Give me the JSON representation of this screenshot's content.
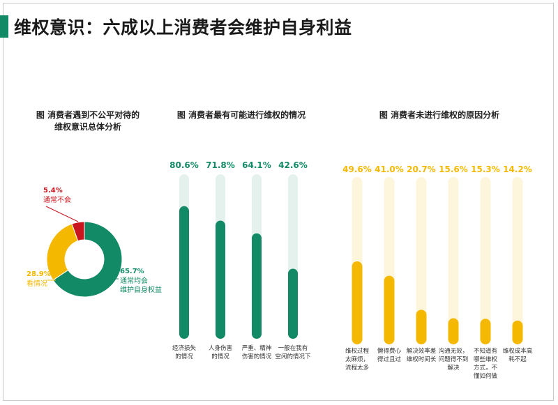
{
  "page": {
    "title": "维权意识：六成以上消费者会维护自身利益"
  },
  "colors": {
    "green": "#138a66",
    "green_track": "#e4f1ec",
    "yellow": "#f5b800",
    "yellow_track": "#fdf5dc",
    "red": "#c9151e"
  },
  "charts": {
    "donut_title_lines": [
      "图 消费者遇到不公平对待的",
      "维权意识总体分析"
    ],
    "bar1_title": "图 消费者最有可能进行维权的情况",
    "bar2_title": "图 消费者未进行维权的原因分析"
  },
  "chart_data": [
    {
      "type": "pie",
      "variant": "donut",
      "slices": [
        {
          "label": "通常均会维护自身权益",
          "label_lines": [
            "通常均会",
            "维护自身权益"
          ],
          "value": 65.7,
          "value_text": "65.7%",
          "color": "#138a66"
        },
        {
          "label": "看情况",
          "label_lines": [
            "看情况"
          ],
          "value": 28.9,
          "value_text": "28.9%",
          "color": "#f5b800"
        },
        {
          "label": "通常不会",
          "label_lines": [
            "通常不会"
          ],
          "value": 5.4,
          "value_text": "5.4%",
          "color": "#c9151e"
        }
      ]
    },
    {
      "type": "bar",
      "orientation": "vertical",
      "ylim": [
        0,
        100
      ],
      "categories": [
        "经济损失的情况",
        "人身伤害的情况",
        "严重、精神伤害的情况",
        "一般在我有空闲的情况下"
      ],
      "category_lines": [
        [
          "经济损失",
          "的情况"
        ],
        [
          "人身伤害",
          "的情况"
        ],
        [
          "严重、精神",
          "伤害的情况"
        ],
        [
          "一般在我有",
          "空闲的情况下"
        ]
      ],
      "values": [
        80.6,
        71.8,
        64.1,
        42.6
      ],
      "value_labels": [
        "80.6%",
        "71.8%",
        "64.1%",
        "42.6%"
      ]
    },
    {
      "type": "bar",
      "orientation": "vertical",
      "ylim": [
        0,
        100
      ],
      "categories": [
        "维权过程太麻烦，流程太多",
        "懒得费心得过且过",
        "解决效率差维权时间长",
        "沟通无效，问题得不到解决",
        "不知道有哪些维权方式，不懂如何做",
        "维权成本高耗不起"
      ],
      "category_lines": [
        [
          "维权过程",
          "太麻烦，",
          "流程太多"
        ],
        [
          "懒得费心",
          "得过且过"
        ],
        [
          "解决效率差",
          "维权时间长"
        ],
        [
          "沟通无效，",
          "问题得不到",
          "解决"
        ],
        [
          "不知道有",
          "哪些维权",
          "方式，不",
          "懂如何做"
        ],
        [
          "维权成本高",
          "耗不起"
        ]
      ],
      "values": [
        49.6,
        41.0,
        20.7,
        15.6,
        15.3,
        14.2
      ],
      "value_labels": [
        "49.6%",
        "41.0%",
        "20.7%",
        "15.6%",
        "15.3%",
        "14.2%"
      ]
    }
  ]
}
